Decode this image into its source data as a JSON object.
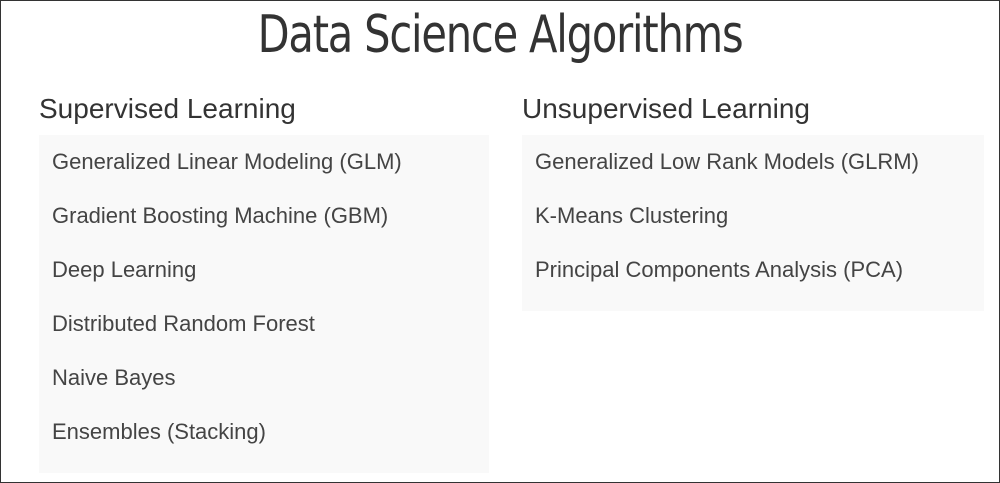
{
  "title": "Data Science Algorithms",
  "supervised": {
    "heading": "Supervised Learning",
    "items": [
      "Generalized Linear Modeling (GLM)",
      "Gradient Boosting Machine (GBM)",
      "Deep Learning",
      "Distributed Random Forest",
      "Naive Bayes",
      "Ensembles (Stacking)"
    ]
  },
  "unsupervised": {
    "heading": "Unsupervised Learning",
    "items": [
      "Generalized Low Rank Models (GLRM)",
      "K-Means Clustering",
      "Principal Components Analysis (PCA)"
    ]
  },
  "colors": {
    "text": "#333333",
    "panel": "#f9f9f9",
    "border": "#333333"
  }
}
